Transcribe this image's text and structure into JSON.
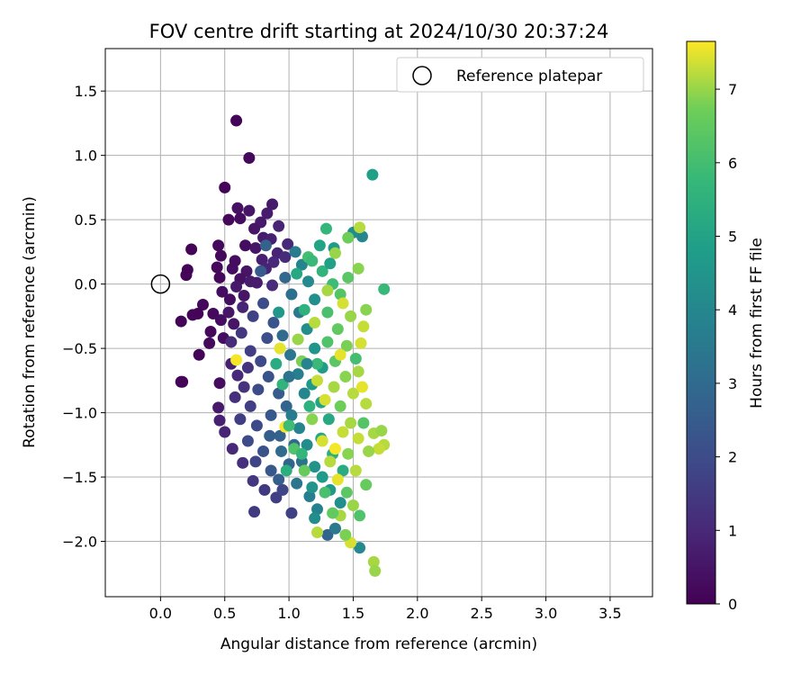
{
  "chart_data": {
    "type": "scatter",
    "title": "FOV centre drift starting at 2024/10/30 20:37:24",
    "xlabel": "Angular distance from reference (arcmin)",
    "ylabel": "Rotation from reference (arcmin)",
    "xlim": [
      -0.43,
      3.83
    ],
    "ylim": [
      -2.43,
      1.83
    ],
    "xticks": [
      0.0,
      0.5,
      1.0,
      1.5,
      2.0,
      2.5,
      3.0,
      3.5
    ],
    "yticks": [
      -2.0,
      -1.5,
      -1.0,
      -0.5,
      0.0,
      0.5,
      1.0,
      1.5
    ],
    "tick_labels_x": [
      "0.0",
      "0.5",
      "1.0",
      "1.5",
      "2.0",
      "2.5",
      "3.0",
      "3.5"
    ],
    "tick_labels_y": [
      "−2.0",
      "−1.5",
      "−1.0",
      "−0.5",
      "0.0",
      "0.5",
      "1.0",
      "1.5"
    ],
    "grid": true,
    "colormap": "viridis",
    "colorbar": {
      "label": "Hours from first FF file",
      "range": [
        0,
        7.65
      ],
      "ticks": [
        0,
        1,
        2,
        3,
        4,
        5,
        6,
        7
      ],
      "tick_labels": [
        "0",
        "1",
        "2",
        "3",
        "4",
        "5",
        "6",
        "7"
      ]
    },
    "legend": {
      "placement": "top-right",
      "entries": [
        "Reference platepar"
      ]
    },
    "reference_point": {
      "x": 0.0,
      "y": 0.0
    },
    "points": [
      {
        "x": 0.59,
        "y": 1.27,
        "h": 0.1
      },
      {
        "x": 0.69,
        "y": 0.98,
        "h": 0.2
      },
      {
        "x": 0.5,
        "y": 0.75,
        "h": 0.1
      },
      {
        "x": 0.87,
        "y": 0.62,
        "h": 0.6
      },
      {
        "x": 0.6,
        "y": 0.59,
        "h": 0.4
      },
      {
        "x": 0.69,
        "y": 0.57,
        "h": 0.5
      },
      {
        "x": 0.83,
        "y": 0.55,
        "h": 0.7
      },
      {
        "x": 0.53,
        "y": 0.5,
        "h": 0.2
      },
      {
        "x": 0.62,
        "y": 0.51,
        "h": 0.3
      },
      {
        "x": 0.78,
        "y": 0.48,
        "h": 0.6
      },
      {
        "x": 0.92,
        "y": 0.45,
        "h": 0.9
      },
      {
        "x": 0.73,
        "y": 0.43,
        "h": 0.5
      },
      {
        "x": 0.8,
        "y": 0.36,
        "h": 0.7
      },
      {
        "x": 0.86,
        "y": 0.35,
        "h": 0.8
      },
      {
        "x": 0.99,
        "y": 0.31,
        "h": 1.0
      },
      {
        "x": 0.24,
        "y": 0.27,
        "h": 0.1
      },
      {
        "x": 0.45,
        "y": 0.3,
        "h": 0.2
      },
      {
        "x": 0.66,
        "y": 0.3,
        "h": 0.3
      },
      {
        "x": 0.74,
        "y": 0.28,
        "h": 0.5
      },
      {
        "x": 0.91,
        "y": 0.24,
        "h": 0.9
      },
      {
        "x": 0.97,
        "y": 0.21,
        "h": 1.1
      },
      {
        "x": 0.47,
        "y": 0.22,
        "h": 0.2
      },
      {
        "x": 0.58,
        "y": 0.18,
        "h": 0.3
      },
      {
        "x": 0.79,
        "y": 0.19,
        "h": 0.8
      },
      {
        "x": 0.88,
        "y": 0.17,
        "h": 1.0
      },
      {
        "x": 0.44,
        "y": 0.13,
        "h": 0.2
      },
      {
        "x": 0.56,
        "y": 0.12,
        "h": 0.3
      },
      {
        "x": 0.67,
        "y": 0.1,
        "h": 0.5
      },
      {
        "x": 0.82,
        "y": 0.12,
        "h": 0.9
      },
      {
        "x": 0.21,
        "y": 0.11,
        "h": 0.1
      },
      {
        "x": 0.2,
        "y": 0.07,
        "h": 0.1
      },
      {
        "x": 0.46,
        "y": 0.05,
        "h": 0.2
      },
      {
        "x": 0.62,
        "y": 0.04,
        "h": 0.4
      },
      {
        "x": 0.75,
        "y": 0.01,
        "h": 0.7
      },
      {
        "x": 0.87,
        "y": -0.01,
        "h": 1.1
      },
      {
        "x": 0.48,
        "y": -0.06,
        "h": 0.3
      },
      {
        "x": 0.54,
        "y": -0.12,
        "h": 0.3
      },
      {
        "x": 0.65,
        "y": -0.09,
        "h": 0.5
      },
      {
        "x": 0.33,
        "y": -0.16,
        "h": 0.2
      },
      {
        "x": 0.41,
        "y": -0.23,
        "h": 0.2
      },
      {
        "x": 0.25,
        "y": -0.24,
        "h": 0.1
      },
      {
        "x": 0.16,
        "y": -0.29,
        "h": 0.1
      },
      {
        "x": 0.29,
        "y": -0.23,
        "h": 0.1
      },
      {
        "x": 0.47,
        "y": -0.28,
        "h": 0.3
      },
      {
        "x": 0.57,
        "y": -0.31,
        "h": 0.5
      },
      {
        "x": 0.39,
        "y": -0.37,
        "h": 0.2
      },
      {
        "x": 0.49,
        "y": -0.42,
        "h": 0.3
      },
      {
        "x": 0.38,
        "y": -0.46,
        "h": 0.2
      },
      {
        "x": 0.3,
        "y": -0.55,
        "h": 0.1
      },
      {
        "x": 0.17,
        "y": -0.76,
        "h": 0.1
      },
      {
        "x": 0.16,
        "y": -0.76,
        "h": 0.1
      },
      {
        "x": 0.46,
        "y": -0.77,
        "h": 0.3
      },
      {
        "x": 0.45,
        "y": -0.96,
        "h": 0.6
      },
      {
        "x": 0.46,
        "y": -1.06,
        "h": 0.8
      },
      {
        "x": 0.5,
        "y": -1.15,
        "h": 0.9
      },
      {
        "x": 0.56,
        "y": -1.28,
        "h": 1.0
      },
      {
        "x": 0.64,
        "y": -1.39,
        "h": 1.2
      },
      {
        "x": 0.72,
        "y": -1.53,
        "h": 1.4
      },
      {
        "x": 0.81,
        "y": -1.6,
        "h": 1.5
      },
      {
        "x": 0.73,
        "y": -1.77,
        "h": 1.5
      },
      {
        "x": 0.9,
        "y": -1.66,
        "h": 1.6
      },
      {
        "x": 1.02,
        "y": -1.78,
        "h": 1.7
      },
      {
        "x": 0.95,
        "y": -1.6,
        "h": 1.8
      },
      {
        "x": 0.55,
        "y": -0.62,
        "h": 0.8
      },
      {
        "x": 0.6,
        "y": -0.71,
        "h": 1.0
      },
      {
        "x": 0.65,
        "y": -0.8,
        "h": 1.3
      },
      {
        "x": 0.58,
        "y": -0.88,
        "h": 1.2
      },
      {
        "x": 0.7,
        "y": -0.95,
        "h": 1.6
      },
      {
        "x": 0.62,
        "y": -1.05,
        "h": 1.6
      },
      {
        "x": 0.75,
        "y": -1.1,
        "h": 1.9
      },
      {
        "x": 0.68,
        "y": -1.22,
        "h": 2.0
      },
      {
        "x": 0.8,
        "y": -1.3,
        "h": 2.2
      },
      {
        "x": 0.86,
        "y": -1.45,
        "h": 2.4
      },
      {
        "x": 0.92,
        "y": -1.52,
        "h": 2.6
      },
      {
        "x": 1.0,
        "y": -1.4,
        "h": 2.8
      },
      {
        "x": 0.55,
        "y": -0.45,
        "h": 1.1
      },
      {
        "x": 0.63,
        "y": -0.38,
        "h": 1.4
      },
      {
        "x": 0.7,
        "y": -0.52,
        "h": 1.6
      },
      {
        "x": 0.78,
        "y": -0.6,
        "h": 1.9
      },
      {
        "x": 0.72,
        "y": -0.25,
        "h": 1.7
      },
      {
        "x": 0.8,
        "y": -0.15,
        "h": 2.0
      },
      {
        "x": 0.88,
        "y": -0.3,
        "h": 2.3
      },
      {
        "x": 0.84,
        "y": -0.72,
        "h": 2.2
      },
      {
        "x": 0.92,
        "y": -0.85,
        "h": 2.5
      },
      {
        "x": 0.98,
        "y": -0.95,
        "h": 2.8
      },
      {
        "x": 0.86,
        "y": -1.02,
        "h": 2.4
      },
      {
        "x": 0.93,
        "y": -1.18,
        "h": 2.7
      },
      {
        "x": 1.04,
        "y": -1.25,
        "h": 3.1
      },
      {
        "x": 1.1,
        "y": -1.38,
        "h": 3.3
      },
      {
        "x": 1.06,
        "y": -1.55,
        "h": 3.4
      },
      {
        "x": 1.16,
        "y": -1.65,
        "h": 3.7
      },
      {
        "x": 1.22,
        "y": -1.75,
        "h": 3.8
      },
      {
        "x": 1.3,
        "y": -1.95,
        "h": 2.8
      },
      {
        "x": 1.36,
        "y": -1.9,
        "h": 3.5
      },
      {
        "x": 0.78,
        "y": 0.1,
        "h": 2.5
      },
      {
        "x": 0.82,
        "y": 0.3,
        "h": 2.7
      },
      {
        "x": 0.97,
        "y": 0.05,
        "h": 2.9
      },
      {
        "x": 1.02,
        "y": -0.08,
        "h": 3.2
      },
      {
        "x": 1.08,
        "y": -0.22,
        "h": 3.5
      },
      {
        "x": 0.95,
        "y": -0.4,
        "h": 3.0
      },
      {
        "x": 1.01,
        "y": -0.55,
        "h": 3.4
      },
      {
        "x": 1.07,
        "y": -0.7,
        "h": 3.7
      },
      {
        "x": 1.12,
        "y": -0.85,
        "h": 4.0
      },
      {
        "x": 1.02,
        "y": -1.02,
        "h": 3.6
      },
      {
        "x": 1.08,
        "y": -1.12,
        "h": 3.9
      },
      {
        "x": 1.14,
        "y": -1.25,
        "h": 4.2
      },
      {
        "x": 1.2,
        "y": -1.42,
        "h": 4.4
      },
      {
        "x": 1.18,
        "y": -1.58,
        "h": 4.5
      },
      {
        "x": 1.26,
        "y": -1.5,
        "h": 4.7
      },
      {
        "x": 1.32,
        "y": -1.6,
        "h": 4.6
      },
      {
        "x": 1.4,
        "y": -1.7,
        "h": 4.3
      },
      {
        "x": 1.55,
        "y": -2.05,
        "h": 4.1
      },
      {
        "x": 1.2,
        "y": -1.82,
        "h": 4.2
      },
      {
        "x": 1.05,
        "y": 0.25,
        "h": 3.6
      },
      {
        "x": 1.1,
        "y": 0.15,
        "h": 3.9
      },
      {
        "x": 1.15,
        "y": 0.02,
        "h": 4.1
      },
      {
        "x": 1.2,
        "y": -0.12,
        "h": 4.3
      },
      {
        "x": 1.14,
        "y": -0.35,
        "h": 4.2
      },
      {
        "x": 1.2,
        "y": -0.5,
        "h": 4.5
      },
      {
        "x": 1.26,
        "y": -0.65,
        "h": 4.8
      },
      {
        "x": 1.18,
        "y": -0.78,
        "h": 4.6
      },
      {
        "x": 1.25,
        "y": -0.92,
        "h": 5.0
      },
      {
        "x": 1.31,
        "y": -1.05,
        "h": 5.2
      },
      {
        "x": 1.25,
        "y": -1.2,
        "h": 5.1
      },
      {
        "x": 1.34,
        "y": -1.32,
        "h": 5.4
      },
      {
        "x": 1.42,
        "y": -1.45,
        "h": 5.3
      },
      {
        "x": 1.35,
        "y": 0.28,
        "h": 4.7
      },
      {
        "x": 1.5,
        "y": 0.4,
        "h": 4.2
      },
      {
        "x": 1.57,
        "y": 0.37,
        "h": 4.0
      },
      {
        "x": 1.65,
        "y": 0.85,
        "h": 4.9
      },
      {
        "x": 1.29,
        "y": 0.43,
        "h": 5.7
      },
      {
        "x": 1.15,
        "y": 0.21,
        "h": 6.0
      },
      {
        "x": 1.18,
        "y": 0.18,
        "h": 5.8
      },
      {
        "x": 1.26,
        "y": 0.1,
        "h": 5.6
      },
      {
        "x": 1.34,
        "y": 0.0,
        "h": 5.9
      },
      {
        "x": 1.4,
        "y": -0.08,
        "h": 6.3
      },
      {
        "x": 1.3,
        "y": -0.22,
        "h": 6.1
      },
      {
        "x": 1.38,
        "y": -0.35,
        "h": 6.5
      },
      {
        "x": 1.45,
        "y": -0.48,
        "h": 6.8
      },
      {
        "x": 1.36,
        "y": -0.6,
        "h": 6.4
      },
      {
        "x": 1.44,
        "y": -0.72,
        "h": 6.9
      },
      {
        "x": 1.5,
        "y": -0.85,
        "h": 7.2
      },
      {
        "x": 1.4,
        "y": -0.95,
        "h": 6.7
      },
      {
        "x": 1.48,
        "y": -1.08,
        "h": 7.1
      },
      {
        "x": 1.54,
        "y": -1.2,
        "h": 7.3
      },
      {
        "x": 1.46,
        "y": -1.32,
        "h": 6.9
      },
      {
        "x": 1.52,
        "y": -1.45,
        "h": 7.2
      },
      {
        "x": 1.6,
        "y": -1.56,
        "h": 6.6
      },
      {
        "x": 1.45,
        "y": -1.62,
        "h": 6.4
      },
      {
        "x": 1.5,
        "y": -1.72,
        "h": 7.0
      },
      {
        "x": 1.55,
        "y": -1.8,
        "h": 6.2
      },
      {
        "x": 1.4,
        "y": -1.8,
        "h": 7.1
      },
      {
        "x": 1.48,
        "y": -2.01,
        "h": 7.4
      },
      {
        "x": 1.44,
        "y": -1.95,
        "h": 6.8
      },
      {
        "x": 1.22,
        "y": -1.93,
        "h": 7.2
      },
      {
        "x": 1.66,
        "y": -2.16,
        "h": 7.1
      },
      {
        "x": 1.67,
        "y": -2.23,
        "h": 7.0
      },
      {
        "x": 1.54,
        "y": 0.12,
        "h": 6.9
      },
      {
        "x": 1.55,
        "y": 0.44,
        "h": 7.2
      },
      {
        "x": 1.46,
        "y": 0.36,
        "h": 6.7
      },
      {
        "x": 1.36,
        "y": 0.24,
        "h": 7.0
      },
      {
        "x": 1.74,
        "y": -0.04,
        "h": 5.8
      },
      {
        "x": 1.6,
        "y": -0.2,
        "h": 6.9
      },
      {
        "x": 1.58,
        "y": -0.33,
        "h": 7.3
      },
      {
        "x": 1.56,
        "y": -0.46,
        "h": 7.4
      },
      {
        "x": 1.54,
        "y": -0.68,
        "h": 7.1
      },
      {
        "x": 1.57,
        "y": -0.8,
        "h": 7.5
      },
      {
        "x": 1.6,
        "y": -0.93,
        "h": 7.2
      },
      {
        "x": 1.66,
        "y": -1.16,
        "h": 7.1
      },
      {
        "x": 1.72,
        "y": -1.14,
        "h": 7.0
      },
      {
        "x": 1.74,
        "y": -1.25,
        "h": 7.2
      },
      {
        "x": 1.7,
        "y": -1.28,
        "h": 7.3
      },
      {
        "x": 1.62,
        "y": -1.3,
        "h": 7.0
      },
      {
        "x": 0.59,
        "y": -0.59,
        "h": 7.6
      },
      {
        "x": 0.97,
        "y": -1.11,
        "h": 7.6
      },
      {
        "x": 0.93,
        "y": -0.5,
        "h": 7.5
      },
      {
        "x": 1.07,
        "y": -0.43,
        "h": 7.0
      },
      {
        "x": 1.2,
        "y": -0.3,
        "h": 7.2
      },
      {
        "x": 1.1,
        "y": -0.6,
        "h": 6.8
      },
      {
        "x": 1.22,
        "y": -0.75,
        "h": 7.3
      },
      {
        "x": 1.28,
        "y": -0.9,
        "h": 7.4
      },
      {
        "x": 1.18,
        "y": -1.05,
        "h": 6.9
      },
      {
        "x": 1.26,
        "y": -1.22,
        "h": 7.4
      },
      {
        "x": 1.32,
        "y": -1.38,
        "h": 7.2
      },
      {
        "x": 1.38,
        "y": -1.52,
        "h": 7.5
      },
      {
        "x": 1.12,
        "y": -1.45,
        "h": 6.6
      },
      {
        "x": 1.04,
        "y": -1.28,
        "h": 6.2
      },
      {
        "x": 1.0,
        "y": -1.1,
        "h": 5.9
      },
      {
        "x": 0.95,
        "y": -0.78,
        "h": 5.6
      },
      {
        "x": 0.9,
        "y": -0.62,
        "h": 5.3
      },
      {
        "x": 1.3,
        "y": -0.05,
        "h": 7.1
      },
      {
        "x": 1.42,
        "y": -0.15,
        "h": 7.4
      },
      {
        "x": 1.48,
        "y": -0.25,
        "h": 7.0
      },
      {
        "x": 1.4,
        "y": -0.55,
        "h": 7.5
      },
      {
        "x": 1.35,
        "y": -0.8,
        "h": 7.1
      },
      {
        "x": 1.42,
        "y": -1.15,
        "h": 7.3
      },
      {
        "x": 1.36,
        "y": -1.28,
        "h": 7.6
      },
      {
        "x": 1.3,
        "y": -0.45,
        "h": 6.2
      },
      {
        "x": 1.12,
        "y": -0.2,
        "h": 5.5
      },
      {
        "x": 1.06,
        "y": 0.08,
        "h": 5.2
      },
      {
        "x": 0.92,
        "y": -0.22,
        "h": 4.6
      },
      {
        "x": 1.22,
        "y": -0.62,
        "h": 5.8
      },
      {
        "x": 1.16,
        "y": -0.95,
        "h": 5.5
      },
      {
        "x": 1.1,
        "y": -1.32,
        "h": 5.7
      },
      {
        "x": 0.98,
        "y": -1.45,
        "h": 5.4
      },
      {
        "x": 1.28,
        "y": -1.62,
        "h": 6.1
      },
      {
        "x": 1.34,
        "y": -1.78,
        "h": 6.5
      },
      {
        "x": 1.58,
        "y": -1.08,
        "h": 6.3
      },
      {
        "x": 1.52,
        "y": -0.58,
        "h": 6.0
      },
      {
        "x": 1.46,
        "y": 0.05,
        "h": 6.4
      },
      {
        "x": 1.24,
        "y": 0.3,
        "h": 5.0
      },
      {
        "x": 1.32,
        "y": 0.16,
        "h": 4.9
      },
      {
        "x": 0.74,
        "y": -1.38,
        "h": 1.8
      },
      {
        "x": 0.68,
        "y": -0.65,
        "h": 1.3
      },
      {
        "x": 0.83,
        "y": -0.42,
        "h": 2.1
      },
      {
        "x": 0.76,
        "y": -0.82,
        "h": 2.0
      },
      {
        "x": 0.85,
        "y": -1.18,
        "h": 2.6
      },
      {
        "x": 0.94,
        "y": -1.3,
        "h": 3.0
      },
      {
        "x": 1.0,
        "y": -0.72,
        "h": 3.3
      },
      {
        "x": 1.14,
        "y": -0.62,
        "h": 3.9
      },
      {
        "x": 0.64,
        "y": -0.18,
        "h": 0.9
      },
      {
        "x": 0.53,
        "y": -0.22,
        "h": 0.5
      },
      {
        "x": 0.7,
        "y": 0.02,
        "h": 0.7
      },
      {
        "x": 0.59,
        "y": -0.02,
        "h": 0.6
      }
    ]
  }
}
